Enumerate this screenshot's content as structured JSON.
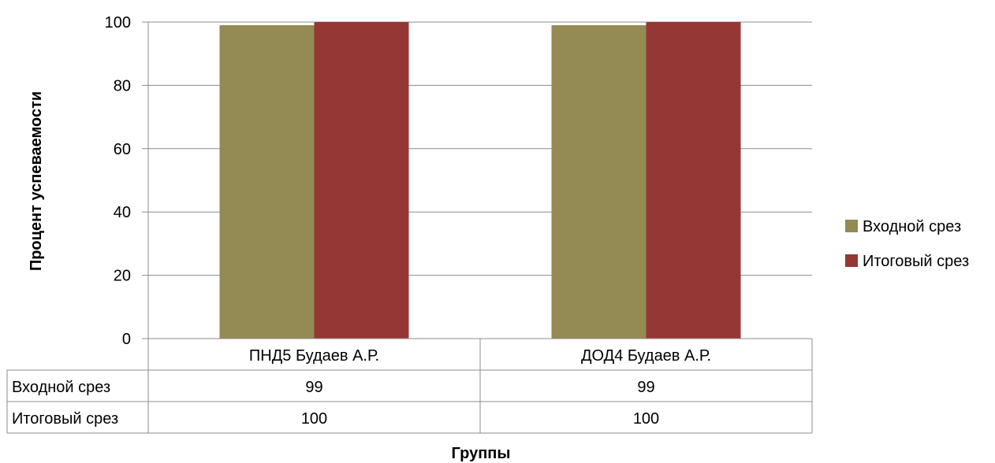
{
  "chart_data": {
    "type": "bar",
    "title": "",
    "xlabel": "Группы",
    "ylabel": "Процент успеваемости",
    "ylim": [
      0,
      100
    ],
    "yticks": [
      0,
      20,
      40,
      60,
      80,
      100
    ],
    "categories": [
      "ПНД5 Будаев А.Р.",
      "ДОД4 Будаев А.Р."
    ],
    "series": [
      {
        "name": "Входной срез",
        "values": [
          99,
          99
        ],
        "color": "#948A54"
      },
      {
        "name": "Итоговый срез",
        "values": [
          100,
          100
        ],
        "color": "#953735"
      }
    ],
    "grid": true,
    "legend": "right",
    "data_table": true
  }
}
